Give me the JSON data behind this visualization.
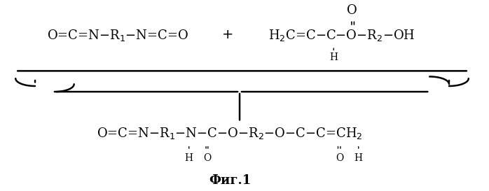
{
  "fig_width": 6.98,
  "fig_height": 2.73,
  "dpi": 100,
  "bg_color": "#ffffff",
  "top_formula_left": "O=C=N–R$_1$–N=C=O",
  "top_formula_right_main": "H$_2$C=C–C–O–R$_2$–OH",
  "top_formula_right_sub_h": "H",
  "top_formula_right_o": "O",
  "plus_sign": "+",
  "bottom_formula": "O=C=N–R$_1$–N–C–O–R$_2$–O–C–C=CH$_2$",
  "bottom_sub_h": "H",
  "bottom_sub_o1": "O",
  "bottom_sub_o2": "O",
  "bottom_sub_h2": "H",
  "fig_label": "Фиг.1",
  "font_size": 13,
  "font_size_small": 10,
  "text_color": "#000000"
}
